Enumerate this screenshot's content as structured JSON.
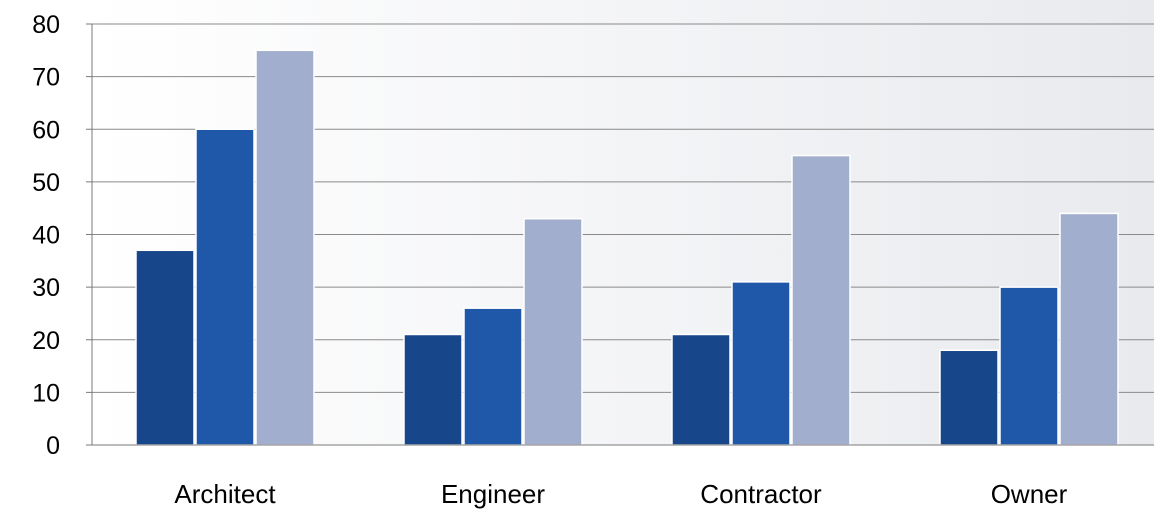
{
  "chart_data": {
    "type": "bar",
    "title": "",
    "xlabel": "",
    "ylabel": "",
    "categories": [
      "Architect",
      "Engineer",
      "Contractor",
      "Owner"
    ],
    "series": [
      {
        "values": [
          37,
          21,
          21,
          18
        ],
        "color": "#17468a"
      },
      {
        "values": [
          60,
          26,
          31,
          30
        ],
        "color": "#1f58a8"
      },
      {
        "values": [
          75,
          43,
          55,
          44
        ],
        "color": "#a2aecd"
      }
    ],
    "ylim": [
      0,
      80
    ],
    "yticks": [
      "0",
      "10",
      "20",
      "30",
      "40",
      "50",
      "60",
      "70",
      "80"
    ],
    "grid": true,
    "legend": "none",
    "background_gradient": [
      "#ffffff",
      "#e8eaee"
    ],
    "gridline_color": "#8a8a8a",
    "axis_color": "#7a7a7a"
  }
}
